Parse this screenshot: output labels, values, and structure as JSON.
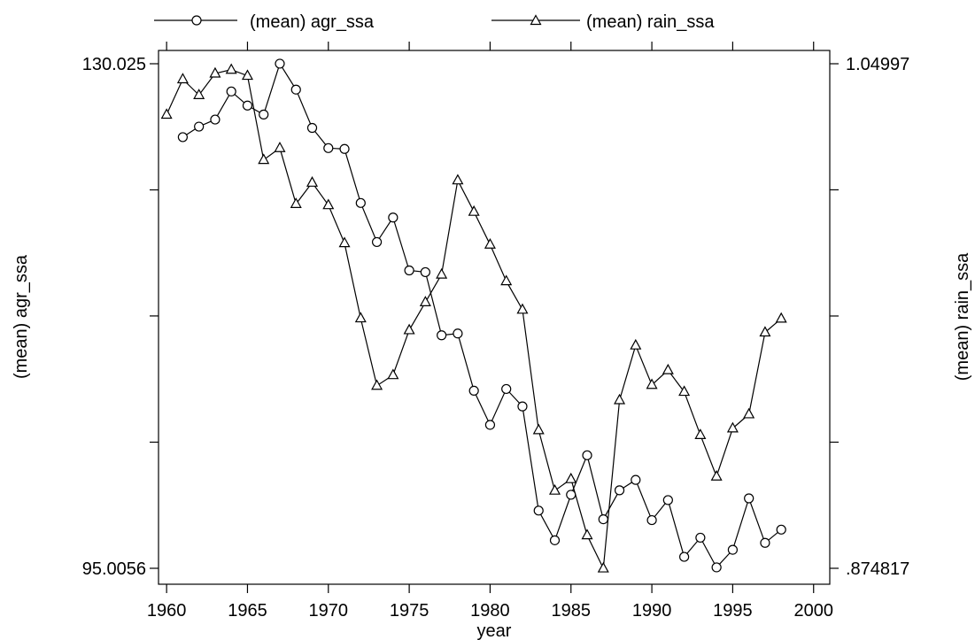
{
  "chart_data": {
    "type": "line",
    "xlabel": "year",
    "ylabel_left": "(mean) agr_ssa",
    "ylabel_right": "(mean) rain_ssa",
    "x_ticks": [
      1960,
      1965,
      1970,
      1975,
      1980,
      1985,
      1990,
      1995,
      2000
    ],
    "x_tick_labels": [
      "1960",
      "1965",
      "1970",
      "1975",
      "1980",
      "1985",
      "1990",
      "1995",
      "2000"
    ],
    "xlim": [
      1959.5,
      2001
    ],
    "ylim_left": [
      95.0056,
      130.025
    ],
    "ylim_right": [
      0.874817,
      1.04997
    ],
    "left_tick_labels": [
      {
        "value": 130.025,
        "label": "130.025"
      },
      {
        "value": 95.0056,
        "label": "95.0056"
      }
    ],
    "right_tick_labels": [
      {
        "value": 1.04997,
        "label": "1.04997"
      },
      {
        "value": 0.874817,
        "label": ".874817"
      }
    ],
    "left_unlabeled_ticks": [
      121.27,
      112.52,
      103.76
    ],
    "right_unlabeled_ticks": [
      1.0062,
      0.9624,
      0.9186
    ],
    "legend": {
      "position": "top",
      "entries": [
        "(mean) agr_ssa",
        "(mean) rain_ssa"
      ]
    },
    "series": [
      {
        "name": "(mean) agr_ssa",
        "axis": "left",
        "marker": "circle",
        "x": [
          1961,
          1962,
          1963,
          1964,
          1965,
          1966,
          1967,
          1968,
          1969,
          1970,
          1971,
          1972,
          1973,
          1974,
          1975,
          1976,
          1977,
          1978,
          1979,
          1980,
          1981,
          1982,
          1983,
          1984,
          1985,
          1986,
          1987,
          1988,
          1989,
          1990,
          1991,
          1992,
          1993,
          1994,
          1995,
          1996,
          1997,
          1998
        ],
        "values": [
          124.93,
          125.66,
          126.15,
          128.1,
          127.12,
          126.5,
          130.03,
          128.23,
          125.57,
          124.17,
          124.11,
          120.36,
          117.65,
          119.35,
          115.68,
          115.56,
          111.18,
          111.3,
          107.33,
          104.96,
          107.45,
          106.24,
          99.01,
          96.95,
          100.11,
          102.85,
          98.41,
          100.42,
          101.14,
          98.35,
          99.74,
          95.8,
          97.13,
          95.07,
          96.29,
          99.86,
          96.77,
          97.69
        ]
      },
      {
        "name": "(mean) rain_ssa",
        "axis": "right",
        "marker": "triangle",
        "x": [
          1960,
          1961,
          1962,
          1963,
          1964,
          1965,
          1966,
          1967,
          1968,
          1969,
          1970,
          1971,
          1972,
          1973,
          1974,
          1975,
          1976,
          1977,
          1978,
          1979,
          1980,
          1981,
          1982,
          1983,
          1984,
          1985,
          1986,
          1987,
          1988,
          1989,
          1990,
          1991,
          1992,
          1993,
          1994,
          1995,
          1996,
          1997,
          1998
        ],
        "values": [
          1.0323,
          1.0446,
          1.0391,
          1.0466,
          1.0479,
          1.0458,
          1.0166,
          1.0207,
          1.0013,
          1.0087,
          1.0009,
          0.9877,
          0.9616,
          0.9382,
          0.9419,
          0.9575,
          0.9672,
          0.9768,
          1.0095,
          0.9986,
          0.9872,
          0.9745,
          0.9646,
          0.9228,
          0.9018,
          0.9058,
          0.8863,
          0.8748,
          0.9332,
          0.9522,
          0.9385,
          0.9436,
          0.9361,
          0.9211,
          0.9067,
          0.9234,
          0.9283,
          0.9567,
          0.9615
        ]
      }
    ]
  }
}
